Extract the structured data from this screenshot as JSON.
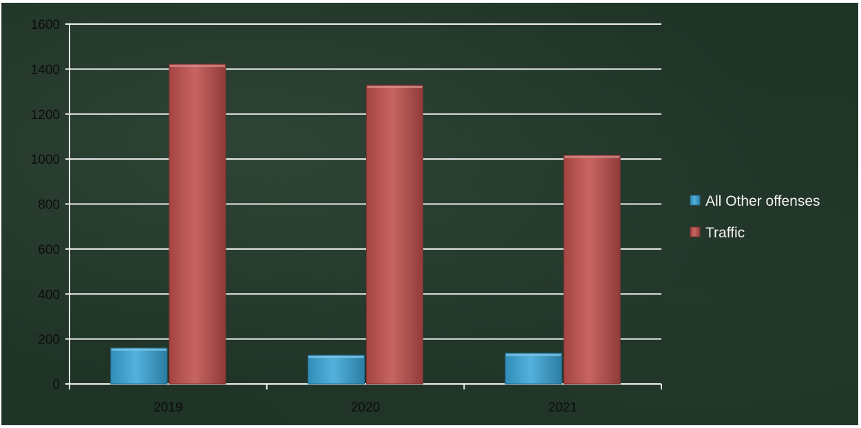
{
  "chart_data": {
    "type": "bar",
    "categories": [
      "2019",
      "2020",
      "2021"
    ],
    "series": [
      {
        "name": "All Other offenses",
        "values": [
          160,
          128,
          137
        ],
        "color": "#3aa6d8"
      },
      {
        "name": "Traffic",
        "values": [
          1422,
          1328,
          1017
        ],
        "color": "#c0504d"
      }
    ],
    "ylim": [
      0,
      1600
    ],
    "yticks": [
      0,
      200,
      400,
      600,
      800,
      1000,
      1200,
      1400,
      1600
    ],
    "grid": true,
    "legend_position": "right",
    "title": "",
    "xlabel": "",
    "ylabel": ""
  }
}
